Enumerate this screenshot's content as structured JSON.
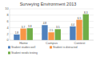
{
  "chart_data": {
    "type": "bar",
    "title": "Surveying Environment 2013",
    "categories": [
      "Home",
      "Campus",
      "Contest"
    ],
    "series": [
      {
        "name": "Student studies well",
        "color": "#4f81bd",
        "values": [
          1.8,
          4.8,
          4.4
        ]
      },
      {
        "name": "Student is distracted",
        "color": "#f79646",
        "values": [
          3.7,
          2.5,
          6.5
        ]
      },
      {
        "name": "Student needs testing",
        "color": "#70ad47",
        "values": [
          3.8,
          3.5,
          8.3
        ]
      }
    ],
    "ylim": [
      0,
      10
    ],
    "yticks": [
      0,
      2,
      4,
      6,
      8,
      10
    ],
    "grid": true,
    "data_labels": true,
    "legend": "bottom"
  }
}
